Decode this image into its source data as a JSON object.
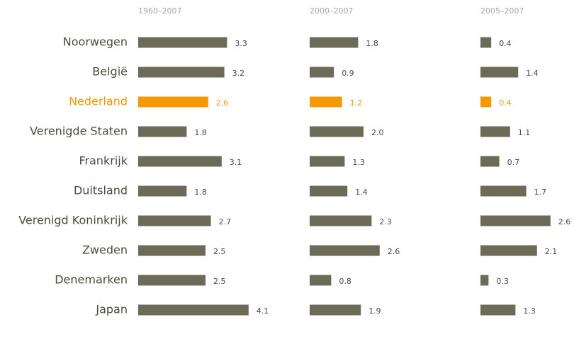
{
  "chart_data": {
    "type": "bar",
    "orientation": "horizontal",
    "categories": [
      "Noorwegen",
      "België",
      "Nederland",
      "Verenigde Staten",
      "Frankrijk",
      "Duitsland",
      "Verenigd Koninkrijk",
      "Zweden",
      "Denemarken",
      "Japan"
    ],
    "color": "#6b6b58",
    "highlight": "Nederland",
    "highlight_color": "#f29a00",
    "series": [
      {
        "name": "1960–2007",
        "values": [
          3.3,
          3.2,
          2.6,
          1.8,
          3.1,
          1.8,
          2.7,
          2.5,
          2.5,
          4.1
        ],
        "value_labels": [
          "3.3",
          "3.2",
          "2.6",
          "1.8",
          "3.1",
          "1.8",
          "2.7",
          "2.5",
          "2.5",
          "4.1"
        ]
      },
      {
        "name": "2000–2007",
        "values": [
          1.8,
          0.9,
          1.2,
          2.0,
          1.3,
          1.4,
          2.3,
          2.6,
          0.8,
          1.9
        ],
        "value_labels": [
          "1.8",
          "0.9",
          "1.2",
          "2.0",
          "1.3",
          "1.4",
          "2.3",
          "2.6",
          "0.8",
          "1.9"
        ]
      },
      {
        "name": "2005–2007",
        "values": [
          0.4,
          1.4,
          0.4,
          1.1,
          0.7,
          1.7,
          2.6,
          2.1,
          0.3,
          1.3
        ],
        "value_labels": [
          "0.4",
          "1.4",
          "0.4",
          "1.1",
          "0.7",
          "1.7",
          "2.6",
          "2.1",
          "0.3",
          "1.3"
        ]
      }
    ]
  }
}
